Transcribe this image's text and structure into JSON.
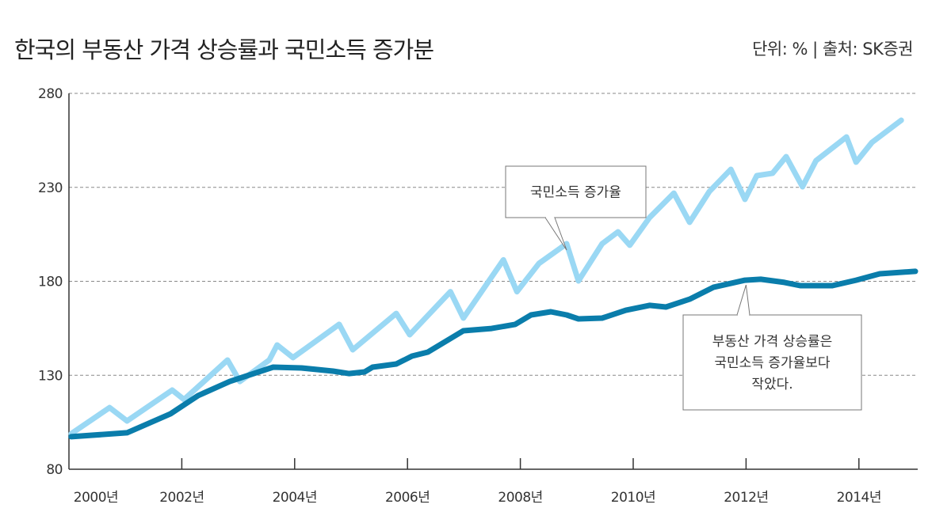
{
  "title": "한국의 부동산 가격 상승률과 국민소득 증가분",
  "unit_source": "단위: % | 출처: SK증권",
  "chart_data": {
    "type": "line",
    "title": "한국의 부동산 가격 상승률과 국민소득 증가분",
    "ylim": [
      80,
      280
    ],
    "yticks": [
      80,
      130,
      180,
      230,
      280
    ],
    "xlim": [
      2000,
      2015
    ],
    "xticks": [
      2000,
      2002,
      2004,
      2006,
      2008,
      2010,
      2012,
      2014
    ],
    "xtick_labels": [
      "2000년",
      "2002년",
      "2004년",
      "2006년",
      "2008년",
      "2010년",
      "2012년",
      "2014년"
    ],
    "grid": "horizontal dashed",
    "series": [
      {
        "name": "국민소득 증가율",
        "color": "#9ad8f4",
        "x": [
          2000.04,
          2000.72,
          2001.03,
          2001.83,
          2002.04,
          2002.81,
          2003.03,
          2003.55,
          2003.69,
          2003.97,
          2004.79,
          2005.03,
          2005.8,
          2006.04,
          2006.76,
          2006.99,
          2007.7,
          2007.94,
          2008.33,
          2008.82,
          2009.03,
          2009.45,
          2009.73,
          2009.94,
          2010.29,
          2010.72,
          2011.0,
          2011.35,
          2011.73,
          2011.98,
          2012.19,
          2012.47,
          2012.71,
          2013.0,
          2013.24,
          2013.78,
          2013.95,
          2014.23,
          2014.75
        ],
        "y": [
          98.9,
          112.8,
          105.7,
          122.1,
          117.1,
          138.1,
          126.7,
          138.1,
          146.1,
          139.4,
          157.1,
          143.6,
          162.9,
          151.6,
          174.5,
          160.4,
          191.4,
          174.5,
          189.5,
          200,
          180.2,
          200,
          206.3,
          199.2,
          213.9,
          226.9,
          211.4,
          227.8,
          239.6,
          223.6,
          236.2,
          237.5,
          246.3,
          230.3,
          244.2,
          256.8,
          243.4,
          253.9,
          265.7
        ]
      },
      {
        "name": "부동산 가격 상승률",
        "color": "#0a7dab",
        "x": [
          2000.04,
          2001.03,
          2001.8,
          2002.29,
          2002.85,
          2003.62,
          2004.12,
          2004.68,
          2004.96,
          2005.24,
          2005.38,
          2005.8,
          2006.08,
          2006.36,
          2006.99,
          2007.49,
          2007.91,
          2008.19,
          2008.54,
          2008.82,
          2009.03,
          2009.45,
          2009.87,
          2010.29,
          2010.58,
          2011.0,
          2011.42,
          2011.98,
          2012.26,
          2012.68,
          2012.96,
          2013.53,
          2013.95,
          2014.37,
          2015.0
        ],
        "y": [
          97.3,
          99.4,
          109.5,
          119.2,
          126.7,
          134.3,
          133.9,
          132.2,
          130.9,
          131.8,
          134.3,
          136,
          140.2,
          142.3,
          153.7,
          154.9,
          157.1,
          162.1,
          163.8,
          162.1,
          160,
          160.4,
          164.6,
          167.2,
          166.3,
          170.5,
          176.8,
          180.6,
          181.1,
          179.4,
          177.7,
          177.7,
          180.6,
          184,
          185.3
        ]
      }
    ],
    "annotations": [
      {
        "text": [
          "국민소득 증가율"
        ],
        "target": [
          2008.82,
          200
        ]
      },
      {
        "text": [
          "부동산 가격 상승률은",
          "국민소득 증가율보다",
          "작았다."
        ],
        "target": [
          2012.0,
          180.6
        ]
      }
    ]
  }
}
